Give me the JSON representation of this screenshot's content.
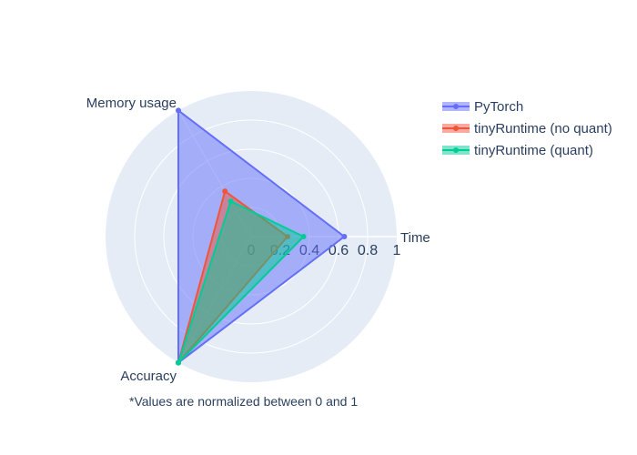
{
  "chart_data": {
    "type": "radar",
    "axes": [
      "Time",
      "Memory usage",
      "Accuracy"
    ],
    "radial_ticks": [
      "0",
      "0.2",
      "0.4",
      "0.6",
      "0.8",
      "1"
    ],
    "radial_range": [
      0,
      1
    ],
    "series": [
      {
        "name": "PyTorch",
        "values": [
          0.64,
          1.0,
          1.0
        ],
        "color": "#636efa"
      },
      {
        "name": "tinyRuntime (no quant)",
        "values": [
          0.25,
          0.36,
          1.0
        ],
        "color": "#ef553b"
      },
      {
        "name": "tinyRuntime (quant)",
        "values": [
          0.36,
          0.28,
          1.0
        ],
        "color": "#00cc96"
      }
    ],
    "legend_position": "top-right",
    "note": "*Values are normalized between 0 and 1",
    "background_color": "#e5ecf6",
    "grid_color": "#ffffff"
  }
}
